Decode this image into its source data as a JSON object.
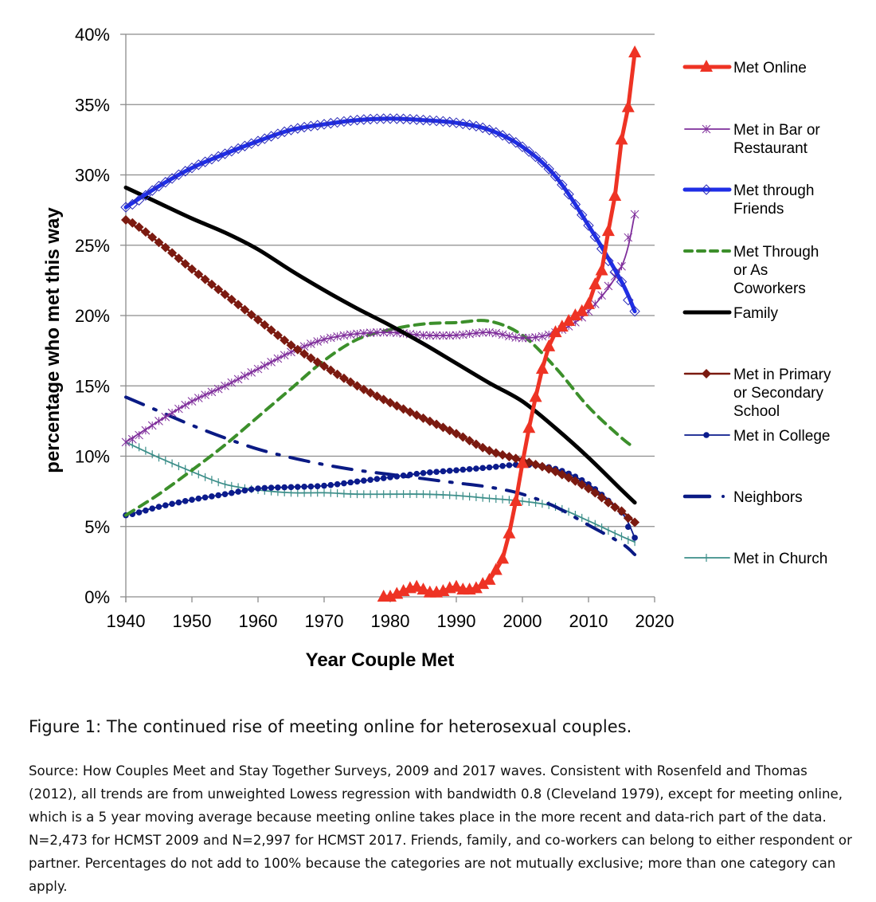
{
  "chart_data": {
    "type": "line",
    "title": "",
    "xlabel": "Year Couple Met",
    "ylabel": "percentage who met this way",
    "xlim": [
      1940,
      2020
    ],
    "ylim": [
      0,
      40
    ],
    "x_ticks": [
      "1940",
      "1950",
      "1960",
      "1970",
      "1980",
      "1990",
      "2000",
      "2010",
      "2020"
    ],
    "y_ticks": [
      "0%",
      "5%",
      "10%",
      "15%",
      "20%",
      "25%",
      "30%",
      "35%",
      "40%"
    ],
    "grid": "horizontal",
    "legend_position": "right",
    "x": [
      1940,
      1945,
      1950,
      1955,
      1960,
      1965,
      1970,
      1975,
      1980,
      1985,
      1990,
      1995,
      2000,
      2005,
      2010,
      2015,
      2017
    ],
    "series": [
      {
        "name": "Met Online",
        "color": "#ee3324",
        "marker": "triangle",
        "style": "solid-thick",
        "x": [
          1979,
          1980,
          1981,
          1982,
          1983,
          1984,
          1985,
          1986,
          1987,
          1988,
          1989,
          1990,
          1991,
          1992,
          1993,
          1994,
          1995,
          1996,
          1997,
          1998,
          1999,
          2000,
          2001,
          2002,
          2003,
          2004,
          2005,
          2006,
          2007,
          2008,
          2009,
          2010,
          2011,
          2012,
          2013,
          2014,
          2015,
          2016,
          2017
        ],
        "values": [
          0.0,
          0.0,
          0.2,
          0.4,
          0.6,
          0.7,
          0.5,
          0.3,
          0.3,
          0.4,
          0.6,
          0.7,
          0.5,
          0.5,
          0.6,
          0.9,
          1.2,
          1.9,
          2.7,
          4.5,
          6.8,
          9.5,
          12.0,
          14.2,
          16.2,
          17.8,
          18.8,
          19.2,
          19.6,
          20.0,
          20.3,
          20.8,
          22.2,
          23.2,
          26.0,
          28.5,
          32.5,
          34.8,
          38.7
        ]
      },
      {
        "name": "Met in Bar or Restaurant",
        "color": "#7f2e9b",
        "marker": "asterisk",
        "style": "solid-thin",
        "values": [
          11.0,
          12.5,
          13.9,
          15.0,
          16.2,
          17.4,
          18.3,
          18.7,
          18.8,
          18.6,
          18.6,
          18.8,
          18.4,
          18.8,
          20.3,
          23.5,
          27.2
        ]
      },
      {
        "name": "Met through Friends",
        "color": "#1f2ee6",
        "marker": "diamond-open",
        "style": "solid-thick",
        "values": [
          27.7,
          29.2,
          30.5,
          31.5,
          32.4,
          33.2,
          33.6,
          33.9,
          34.0,
          33.9,
          33.7,
          33.2,
          32.0,
          29.9,
          26.4,
          22.4,
          20.3
        ]
      },
      {
        "name": "Met Through or As Coworkers",
        "color": "#3c8f2b",
        "marker": "none",
        "style": "dashed",
        "values": [
          5.8,
          7.3,
          9.0,
          10.8,
          12.8,
          14.8,
          16.8,
          18.3,
          19.0,
          19.4,
          19.5,
          19.6,
          18.6,
          16.3,
          13.5,
          11.3,
          10.6
        ]
      },
      {
        "name": "Family",
        "color": "#000000",
        "marker": "none",
        "style": "solid-thick",
        "values": [
          29.1,
          28.0,
          26.9,
          25.9,
          24.7,
          23.2,
          21.8,
          20.5,
          19.3,
          18.0,
          16.6,
          15.2,
          13.9,
          12.0,
          9.9,
          7.6,
          6.7
        ]
      },
      {
        "name": "Met in Primary or Secondary School",
        "color": "#7b1a10",
        "marker": "diamond-filled",
        "style": "solid",
        "values": [
          26.8,
          25.2,
          23.3,
          21.5,
          19.7,
          17.9,
          16.4,
          15.0,
          13.8,
          12.7,
          11.6,
          10.4,
          9.7,
          8.9,
          7.7,
          6.1,
          5.3
        ]
      },
      {
        "name": "Met in College",
        "color": "#0b1b8c",
        "marker": "circle",
        "style": "solid-thin",
        "values": [
          5.8,
          6.4,
          6.9,
          7.3,
          7.7,
          7.8,
          7.9,
          8.2,
          8.5,
          8.8,
          9.0,
          9.2,
          9.4,
          9.1,
          8.0,
          6.0,
          4.2
        ]
      },
      {
        "name": "Neighbors",
        "color": "#0a1a84",
        "marker": "none",
        "style": "dash-dot",
        "values": [
          14.2,
          13.2,
          12.2,
          11.3,
          10.5,
          9.9,
          9.4,
          9.0,
          8.7,
          8.4,
          8.1,
          7.8,
          7.3,
          6.4,
          5.1,
          3.8,
          3.0
        ]
      },
      {
        "name": "Met in Church",
        "color": "#3d8f8a",
        "marker": "plus",
        "style": "solid-thin",
        "values": [
          11.0,
          9.9,
          8.9,
          8.0,
          7.6,
          7.4,
          7.4,
          7.3,
          7.3,
          7.3,
          7.2,
          7.0,
          6.8,
          6.4,
          5.4,
          4.3,
          3.9
        ]
      }
    ]
  },
  "legend": [
    {
      "key": "online",
      "lines": [
        "Met Online"
      ]
    },
    {
      "key": "bar",
      "lines": [
        "Met in Bar or",
        "Restaurant"
      ]
    },
    {
      "key": "friends",
      "lines": [
        "Met through",
        "Friends"
      ]
    },
    {
      "key": "coworkers",
      "lines": [
        "Met Through",
        "or As",
        "Coworkers"
      ]
    },
    {
      "key": "family",
      "lines": [
        "Family"
      ]
    },
    {
      "key": "school",
      "lines": [
        "Met in Primary",
        "or Secondary",
        "School"
      ]
    },
    {
      "key": "college",
      "lines": [
        "Met in College"
      ]
    },
    {
      "key": "neighbors",
      "lines": [
        "Neighbors"
      ]
    },
    {
      "key": "church",
      "lines": [
        "Met in Church"
      ]
    }
  ],
  "caption": {
    "title": "Figure 1: The continued rise of meeting online for heterosexual couples.",
    "body": "Source: How Couples Meet and Stay Together Surveys, 2009 and 2017 waves. Consistent with Rosenfeld and Thomas (2012), all trends are from unweighted Lowess regression with bandwidth 0.8 (Cleveland 1979), except for meeting online, which is a 5 year moving average because meeting online takes place in the more recent and data-rich part of the data. N=2,473 for HCMST 2009 and N=2,997 for HCMST 2017. Friends, family, and co-workers can belong to either respondent or partner. Percentages do not add to 100% because the categories are not mutually exclusive; more than one category can apply."
  }
}
